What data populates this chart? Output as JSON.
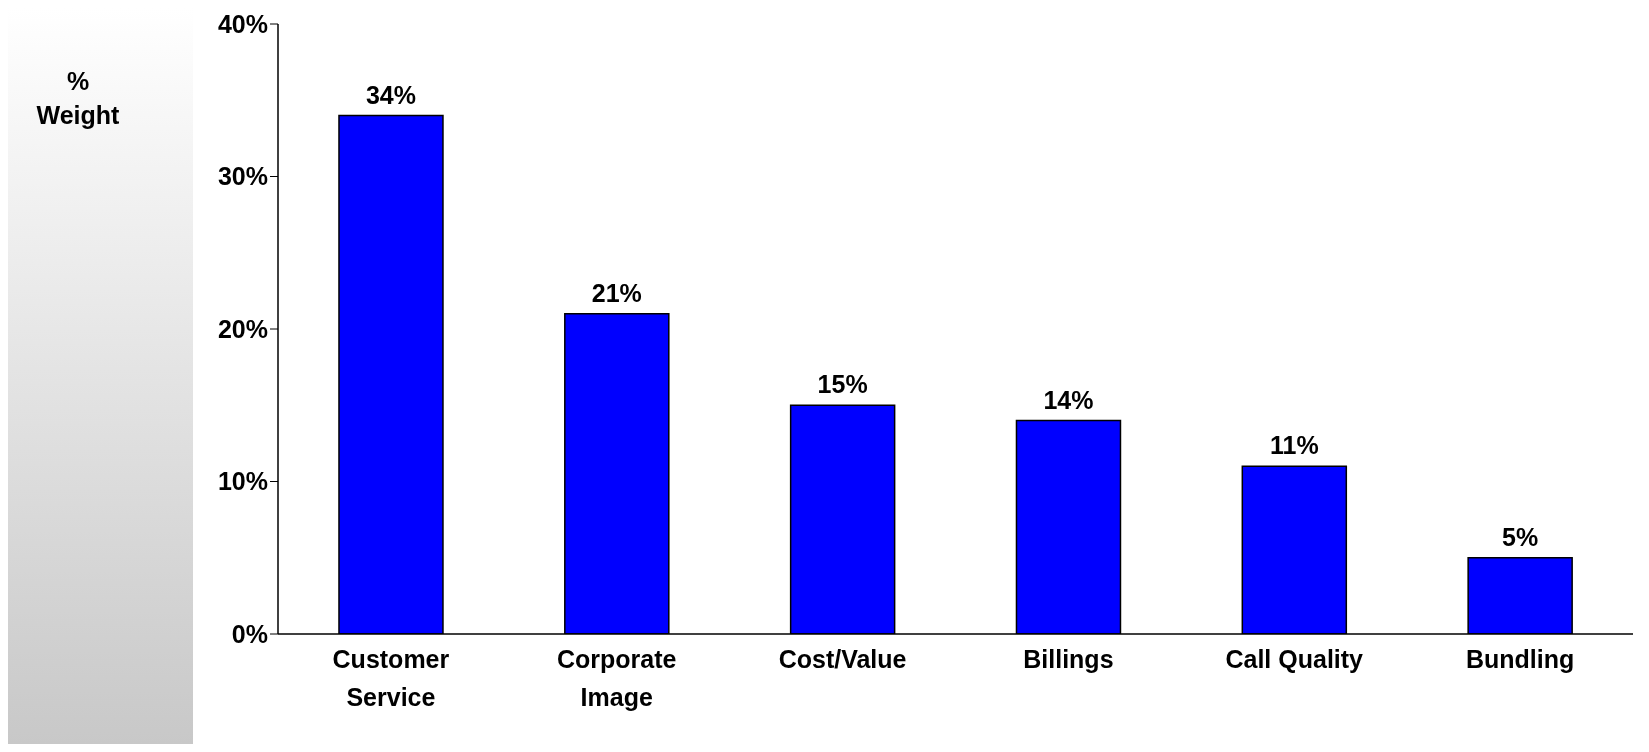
{
  "chart_data": {
    "type": "bar",
    "ylabel": "% Weight",
    "categories": [
      "Customer Service",
      "Corporate Image",
      "Cost/Value",
      "Billings",
      "Call Quality",
      "Bundling"
    ],
    "values": [
      34,
      21,
      15,
      14,
      11,
      5
    ],
    "value_labels": [
      "34%",
      "21%",
      "15%",
      "14%",
      "11%",
      "5%"
    ],
    "color": "#0000ff",
    "ylim": [
      0,
      40
    ],
    "yticks": [
      {
        "value": 0,
        "label": "0%"
      },
      {
        "value": 10,
        "label": "10%"
      },
      {
        "value": 20,
        "label": "20%"
      },
      {
        "value": 30,
        "label": "30%"
      },
      {
        "value": 40,
        "label": "40%"
      }
    ],
    "grid": false,
    "legend": false
  }
}
